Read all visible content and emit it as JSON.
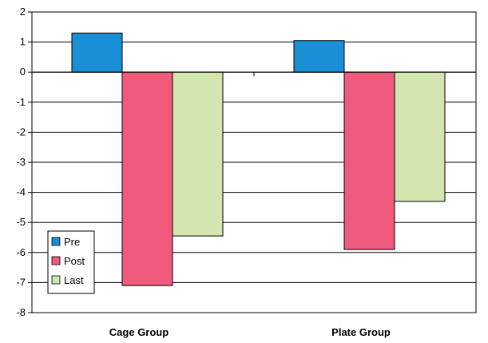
{
  "chart_data": {
    "type": "bar",
    "categories": [
      "Cage Group",
      "Plate Group"
    ],
    "series": [
      {
        "name": "Pre",
        "values": [
          1.3,
          1.05
        ],
        "color": "#1a8fd6"
      },
      {
        "name": "Post",
        "values": [
          -7.1,
          -5.9
        ],
        "color": "#ef5a7d"
      },
      {
        "name": "Last",
        "values": [
          -5.45,
          -4.3
        ],
        "color": "#d3e6b0"
      }
    ],
    "ylim": [
      -8,
      2
    ],
    "yticks": [
      2,
      1,
      0,
      -1,
      -2,
      -3,
      -4,
      -5,
      -6,
      -7,
      -8
    ],
    "grid": true,
    "legend_position": "bottom-left"
  }
}
